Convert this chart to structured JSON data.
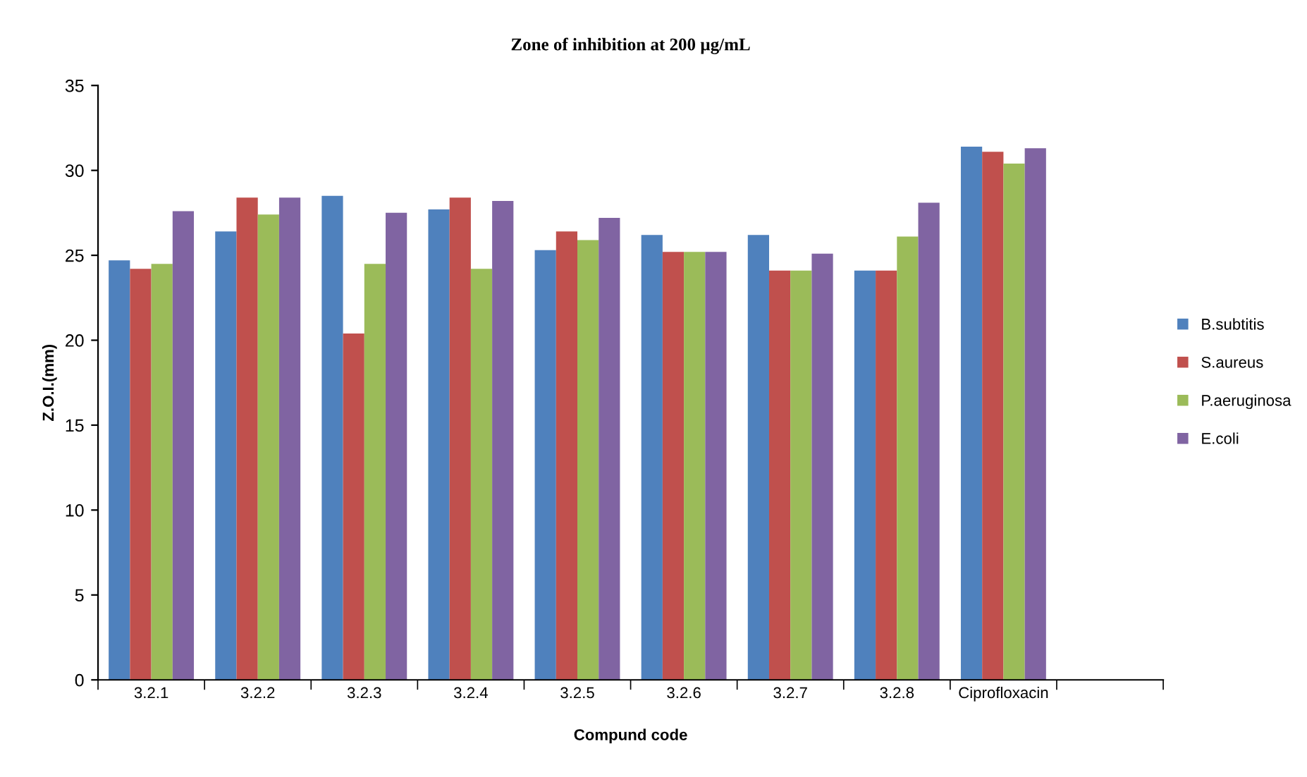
{
  "chart_data": {
    "type": "bar",
    "title": "Zone of inhibition at 200 µg/mL",
    "xlabel": "Compund code",
    "ylabel": "Z.O.I.(mm)",
    "categories": [
      "3.2.1",
      "3.2.2",
      "3.2.3",
      "3.2.4",
      "3.2.5",
      "3.2.6",
      "3.2.7",
      "3.2.8",
      "Ciprofloxacin",
      null
    ],
    "series": [
      {
        "name": "B.subtitis",
        "color": "#4f81bd",
        "values": [
          24.7,
          26.4,
          28.5,
          27.7,
          25.3,
          26.2,
          26.2,
          24.1,
          31.4,
          null
        ]
      },
      {
        "name": "S.aureus",
        "color": "#c0504d",
        "values": [
          24.2,
          28.4,
          20.4,
          28.4,
          26.4,
          25.2,
          24.1,
          24.1,
          31.1,
          null
        ]
      },
      {
        "name": "P.aeruginosa",
        "color": "#9bbb59",
        "values": [
          24.5,
          27.4,
          24.5,
          24.2,
          25.9,
          25.2,
          24.1,
          26.1,
          30.4,
          null
        ]
      },
      {
        "name": "E.coli",
        "color": "#8064a2",
        "values": [
          27.6,
          28.4,
          27.5,
          28.2,
          27.2,
          25.2,
          25.1,
          28.1,
          31.3,
          null
        ]
      }
    ],
    "ylim": [
      0,
      35
    ],
    "yticks": [
      0,
      5,
      10,
      15,
      20,
      25,
      30,
      35
    ],
    "grid": false,
    "legend": "right"
  }
}
